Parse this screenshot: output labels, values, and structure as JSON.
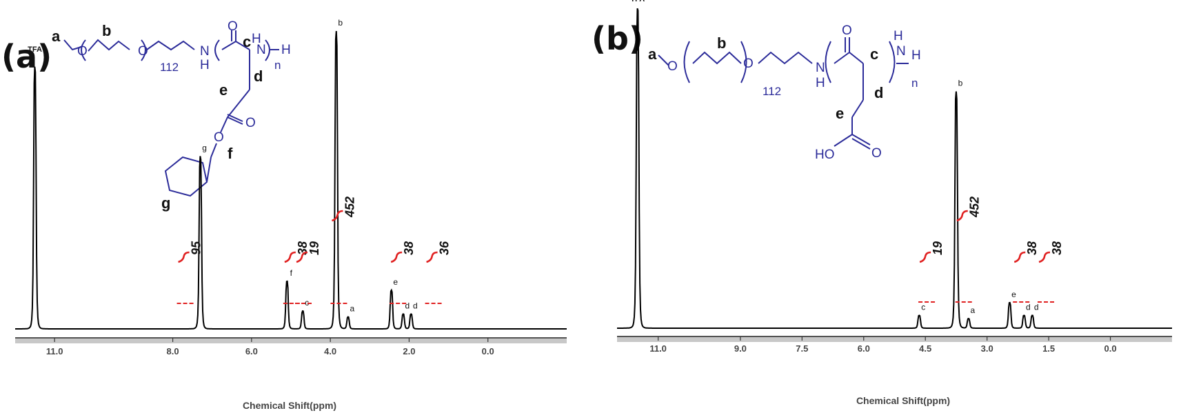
{
  "chart_data": [
    {
      "type": "line",
      "panel_label": "(a)",
      "title": "",
      "xlabel": "Chemical Shift(ppm)",
      "ylabel": "",
      "xlim": [
        12.0,
        -2.0
      ],
      "x_ticks": [
        "11.0",
        "8.0",
        "6.0",
        "4.0",
        "2.0",
        "0.0"
      ],
      "x_tick_values": [
        11.0,
        8.0,
        6.0,
        4.0,
        2.0,
        0.0
      ],
      "tfa_label": "TFA",
      "structure_labels": {
        "a": "a",
        "b": "b",
        "c": "c",
        "d": "d",
        "e": "e",
        "f": "f",
        "g": "g",
        "repeat": "112",
        "n": "n",
        "nh": "N",
        "h": "H",
        "o": "O"
      },
      "peaks": [
        {
          "label": "TFA",
          "ppm": 11.5,
          "height": 0.88
        },
        {
          "label": "g",
          "ppm": 7.3,
          "height": 0.58
        },
        {
          "label": "f",
          "ppm": 5.1,
          "height": 0.16
        },
        {
          "label": "c",
          "ppm": 4.7,
          "height": 0.06
        },
        {
          "label": "b",
          "ppm": 3.85,
          "height": 1.0
        },
        {
          "label": "a",
          "ppm": 3.55,
          "height": 0.04
        },
        {
          "label": "e",
          "ppm": 2.45,
          "height": 0.13
        },
        {
          "label": "d",
          "ppm": 2.15,
          "height": 0.05
        },
        {
          "label": "d",
          "ppm": 1.95,
          "height": 0.05
        }
      ],
      "integrals": [
        {
          "value": "95",
          "ppm": 7.3
        },
        {
          "value": "38",
          "ppm": 4.6
        },
        {
          "value": "19",
          "ppm": 4.3
        },
        {
          "value": "452",
          "ppm": 3.4
        },
        {
          "value": "38",
          "ppm": 1.9
        },
        {
          "value": "36",
          "ppm": 1.0
        }
      ]
    },
    {
      "type": "line",
      "panel_label": "(b)",
      "title": "",
      "xlabel": "Chemical Shift(ppm)",
      "ylabel": "",
      "xlim": [
        12.0,
        -1.5
      ],
      "x_ticks": [
        "11.0",
        "9.0",
        "7.5",
        "6.0",
        "4.5",
        "3.0",
        "1.5",
        "0.0"
      ],
      "x_tick_values": [
        11.0,
        9.0,
        7.5,
        6.0,
        4.5,
        3.0,
        1.5,
        0.0
      ],
      "tfa_label": "TFA",
      "structure_labels": {
        "a": "a",
        "b": "b",
        "c": "c",
        "d": "d",
        "e": "e",
        "repeat": "112",
        "n": "n",
        "nh": "N",
        "h": "H",
        "o": "O",
        "ho": "HO"
      },
      "peaks": [
        {
          "label": "TFA",
          "ppm": 11.5,
          "height": 1.0
        },
        {
          "label": "c",
          "ppm": 4.65,
          "height": 0.04
        },
        {
          "label": "b",
          "ppm": 3.75,
          "height": 0.74
        },
        {
          "label": "a",
          "ppm": 3.45,
          "height": 0.03
        },
        {
          "label": "e",
          "ppm": 2.45,
          "height": 0.08
        },
        {
          "label": "d",
          "ppm": 2.1,
          "height": 0.04
        },
        {
          "label": "d",
          "ppm": 1.9,
          "height": 0.04
        }
      ],
      "integrals": [
        {
          "value": "19",
          "ppm": 4.1
        },
        {
          "value": "452",
          "ppm": 3.2
        },
        {
          "value": "38",
          "ppm": 1.8
        },
        {
          "value": "38",
          "ppm": 1.2
        }
      ]
    }
  ]
}
